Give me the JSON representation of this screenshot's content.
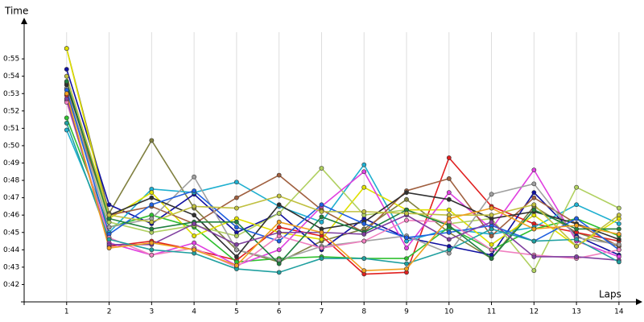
{
  "chart_data": {
    "type": "line",
    "y_label": "Time",
    "x_label": "Laps",
    "x": [
      1,
      2,
      3,
      4,
      5,
      6,
      7,
      8,
      9,
      10,
      11,
      12,
      13,
      14
    ],
    "xlim": [
      0,
      14.4
    ],
    "xticks": [
      1,
      2,
      3,
      4,
      5,
      6,
      7,
      8,
      9,
      10,
      11,
      12,
      13,
      14
    ],
    "ylim": [
      41,
      57
    ],
    "yticks": [
      {
        "value": 42,
        "label": "0:42"
      },
      {
        "value": 43,
        "label": "0:43"
      },
      {
        "value": 44,
        "label": "0:44"
      },
      {
        "value": 45,
        "label": "0:45"
      },
      {
        "value": 46,
        "label": "0:46"
      },
      {
        "value": 47,
        "label": "0:47"
      },
      {
        "value": 48,
        "label": "0:48"
      },
      {
        "value": 49,
        "label": "0:49"
      },
      {
        "value": 50,
        "label": "0:50"
      },
      {
        "value": 51,
        "label": "0:51"
      },
      {
        "value": 52,
        "label": "0:52"
      },
      {
        "value": 53,
        "label": "0:53"
      },
      {
        "value": 54,
        "label": "0:54"
      },
      {
        "value": 55,
        "label": "0:55"
      }
    ],
    "grid": true,
    "series": [
      {
        "color": "#808040",
        "values": [
          55.6,
          46.1,
          50.3,
          46.4,
          44.0,
          43.3,
          44.5,
          45.2,
          46.9,
          45.0,
          43.5,
          46.5,
          45.0,
          44.2
        ]
      },
      {
        "color": "#e02020",
        "values": [
          52.9,
          44.2,
          44.5,
          44.0,
          43.4,
          45.3,
          44.8,
          42.6,
          42.7,
          49.3,
          46.5,
          45.5,
          45.0,
          44.5
        ]
      },
      {
        "color": "#1010a0",
        "values": [
          54.4,
          46.6,
          45.5,
          47.2,
          45.0,
          46.1,
          44.0,
          45.8,
          44.7,
          44.2,
          43.7,
          47.3,
          44.8,
          43.7
        ]
      },
      {
        "color": "#20b0d0",
        "values": [
          50.9,
          45.0,
          47.5,
          47.3,
          47.9,
          46.5,
          45.6,
          48.9,
          44.5,
          45.2,
          44.9,
          45.3,
          46.6,
          45.5
        ]
      },
      {
        "color": "#30c030",
        "values": [
          51.6,
          45.3,
          46.0,
          45.3,
          43.3,
          43.5,
          43.6,
          43.5,
          43.5,
          45.3,
          44.0,
          45.2,
          45.8,
          44.8
        ]
      },
      {
        "color": "#e0e000",
        "values": [
          55.6,
          45.8,
          47.3,
          44.8,
          45.8,
          45.0,
          44.6,
          47.6,
          46.3,
          46.3,
          44.3,
          46.0,
          44.2,
          45.8
        ]
      },
      {
        "color": "#b0d060",
        "values": [
          53.6,
          45.6,
          45.0,
          45.4,
          44.8,
          46.1,
          48.7,
          46.0,
          46.3,
          45.5,
          45.8,
          42.8,
          47.6,
          46.4
        ]
      },
      {
        "color": "#e040e0",
        "values": [
          52.6,
          44.4,
          43.7,
          44.4,
          43.1,
          44.0,
          46.5,
          48.5,
          44.1,
          47.3,
          45.2,
          48.6,
          44.5,
          43.6
        ]
      },
      {
        "color": "#a06040",
        "values": [
          53.0,
          46.0,
          46.5,
          45.5,
          47.0,
          48.3,
          46.3,
          45.0,
          47.4,
          48.1,
          44.8,
          47.0,
          45.5,
          44.2
        ]
      },
      {
        "color": "#a0a0a0",
        "values": [
          53.3,
          45.3,
          45.8,
          48.2,
          44.0,
          43.4,
          44.2,
          44.5,
          44.8,
          43.8,
          47.2,
          47.8,
          44.7,
          44.3
        ]
      },
      {
        "color": "#303030",
        "values": [
          53.5,
          46.0,
          47.0,
          46.0,
          43.6,
          46.6,
          45.2,
          45.6,
          47.3,
          46.9,
          45.8,
          46.2,
          45.5,
          44.6
        ]
      },
      {
        "color": "#2060e0",
        "values": [
          53.2,
          44.9,
          46.6,
          47.4,
          45.3,
          44.5,
          46.6,
          45.5,
          44.7,
          45.0,
          45.4,
          44.5,
          45.8,
          44.0
        ]
      },
      {
        "color": "#f080c0",
        "values": [
          52.5,
          44.7,
          43.7,
          44.1,
          43.0,
          44.8,
          44.1,
          44.5,
          45.7,
          45.6,
          44.0,
          43.7,
          43.5,
          44.0
        ]
      },
      {
        "color": "#208040",
        "values": [
          53.7,
          45.8,
          45.2,
          45.6,
          45.6,
          43.2,
          45.9,
          45.0,
          46.3,
          45.4,
          43.5,
          46.3,
          45.2,
          45.2
        ]
      },
      {
        "color": "#8040a0",
        "values": [
          52.7,
          44.3,
          44.3,
          45.5,
          44.3,
          45.0,
          45.0,
          44.9,
          46.0,
          44.6,
          45.6,
          43.6,
          43.6,
          43.4
        ]
      },
      {
        "color": "#20a0a0",
        "values": [
          51.3,
          44.6,
          44.0,
          43.8,
          42.9,
          42.7,
          43.5,
          43.5,
          43.2,
          44.0,
          45.2,
          44.5,
          44.6,
          43.3
        ]
      },
      {
        "color": "#c0c040",
        "values": [
          54.0,
          46.0,
          45.6,
          46.5,
          46.4,
          47.1,
          46.2,
          46.2,
          46.1,
          46.0,
          46.0,
          46.6,
          44.2,
          46.0
        ]
      },
      {
        "color": "#f0a020",
        "values": [
          53.0,
          44.1,
          44.4,
          44.0,
          43.1,
          45.6,
          45.0,
          42.8,
          42.9,
          45.8,
          46.4,
          45.2,
          45.4,
          44.9
        ]
      }
    ]
  }
}
